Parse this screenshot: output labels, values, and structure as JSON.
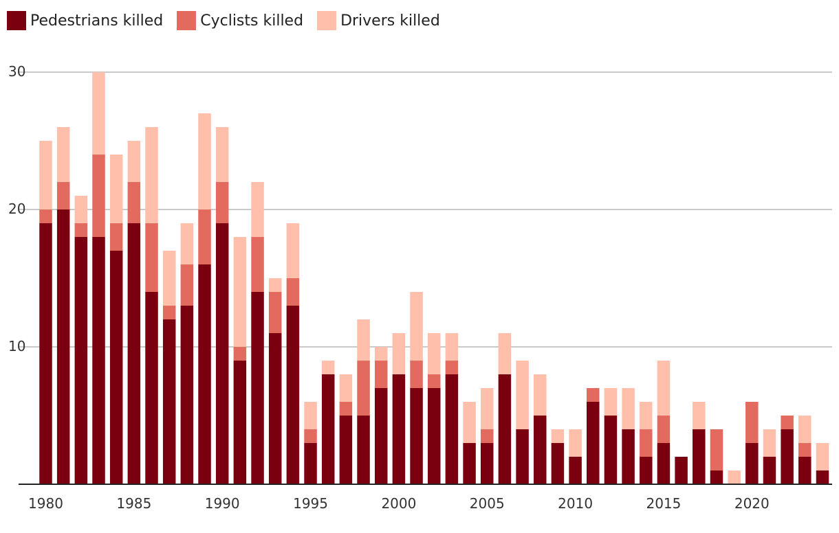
{
  "chart_data": {
    "type": "bar",
    "stacked": true,
    "x": [
      1980,
      1981,
      1982,
      1983,
      1984,
      1985,
      1986,
      1987,
      1988,
      1989,
      1990,
      1991,
      1992,
      1993,
      1994,
      1995,
      1996,
      1997,
      1998,
      1999,
      2000,
      2001,
      2002,
      2003,
      2004,
      2005,
      2006,
      2007,
      2008,
      2009,
      2010,
      2011,
      2012,
      2013,
      2014,
      2015,
      2016,
      2017,
      2018,
      2019,
      2020,
      2021,
      2022,
      2023,
      2024
    ],
    "series": [
      {
        "name": "Pedestrians killed",
        "color": "#7a0010",
        "values": [
          19,
          20,
          18,
          18,
          17,
          19,
          14,
          12,
          13,
          16,
          19,
          9,
          14,
          11,
          13,
          3,
          8,
          5,
          5,
          7,
          8,
          7,
          7,
          8,
          3,
          3,
          8,
          4,
          5,
          3,
          2,
          6,
          5,
          4,
          2,
          3,
          2,
          4,
          1,
          0,
          3,
          2,
          4,
          2,
          1
        ]
      },
      {
        "name": "Cyclists killed",
        "color": "#e36a5e",
        "values": [
          1,
          2,
          1,
          6,
          2,
          3,
          5,
          1,
          3,
          4,
          3,
          1,
          4,
          3,
          2,
          1,
          0,
          1,
          4,
          2,
          0,
          2,
          1,
          1,
          0,
          1,
          0,
          0,
          0,
          0,
          0,
          1,
          0,
          0,
          2,
          2,
          0,
          0,
          3,
          0,
          3,
          0,
          1,
          1,
          0
        ]
      },
      {
        "name": "Drivers killed",
        "color": "#ffbfaa",
        "values": [
          5,
          4,
          2,
          6,
          5,
          3,
          7,
          4,
          3,
          7,
          4,
          8,
          4,
          1,
          4,
          2,
          1,
          2,
          3,
          1,
          3,
          5,
          3,
          2,
          3,
          3,
          3,
          5,
          3,
          1,
          2,
          0,
          2,
          3,
          2,
          4,
          0,
          2,
          0,
          1,
          0,
          2,
          0,
          2,
          2
        ]
      }
    ],
    "ylim": [
      0,
      30
    ],
    "yticks": [
      "10",
      "20",
      "30"
    ],
    "xticks": [
      "1980",
      "1985",
      "1990",
      "1995",
      "2000",
      "2005",
      "2010",
      "2015",
      "2020"
    ],
    "title": "",
    "xlabel": "",
    "ylabel": "",
    "grid": true,
    "legend_position": "top-left"
  }
}
